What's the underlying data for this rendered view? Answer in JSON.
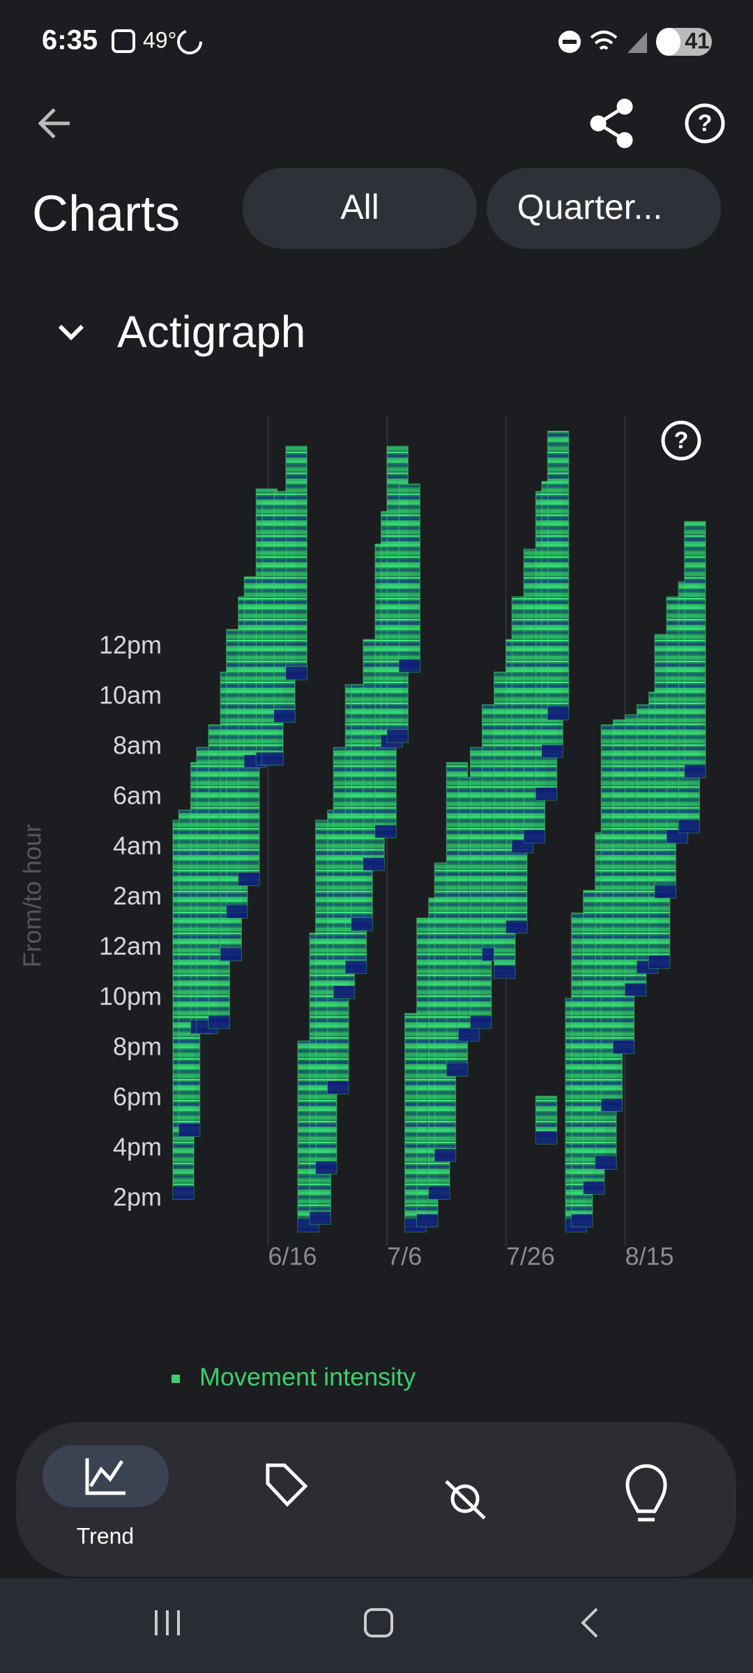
{
  "status_bar": {
    "time": "6:35",
    "temperature": "49°",
    "battery": "41"
  },
  "header": {
    "title": "Charts",
    "filters": [
      "All",
      "Quarter..."
    ]
  },
  "section": {
    "title": "Actigraph"
  },
  "chart_data": {
    "type": "range-bar",
    "y_label": "From/to hour",
    "x": [
      151,
      152,
      154,
      155,
      157,
      159,
      160,
      162,
      163,
      165,
      166,
      168,
      170,
      172,
      174,
      175,
      177,
      178,
      180,
      181,
      183,
      185,
      186,
      187,
      189,
      190,
      192,
      194,
      195,
      197,
      199,
      201,
      203,
      205,
      207,
      208,
      210,
      212,
      213,
      214,
      212,
      217,
      218,
      220,
      222,
      223,
      225,
      227,
      229,
      231,
      232,
      234,
      236,
      237
    ],
    "series": [
      {
        "name": "Movement intensity",
        "color": "#3ccf6a",
        "from": [
          14.0,
          16.5,
          20.6,
          20.6,
          20.8,
          23.5,
          25.2,
          26.5,
          31.2,
          31.3,
          31.3,
          33.0,
          34.7,
          12.7,
          13.0,
          15.0,
          18.2,
          22.0,
          23.0,
          24.7,
          27.1,
          28.4,
          32.0,
          32.2,
          35.0,
          12.7,
          12.9,
          14.0,
          15.5,
          18.9,
          20.3,
          20.8,
          23.5,
          22.8,
          24.6,
          27.8,
          28.2,
          29.9,
          31.6,
          33.1,
          16.2,
          12.7,
          12.9,
          14.2,
          15.2,
          17.5,
          19.8,
          22.1,
          23.0,
          23.2,
          26.0,
          28.2,
          28.6,
          30.8
        ],
        "to": [
          29.1,
          29.5,
          31.4,
          32.0,
          32.9,
          35.0,
          36.7,
          38.0,
          38.8,
          42.3,
          41.8,
          42.2,
          44.0,
          20.3,
          24.6,
          29.1,
          29.5,
          32.0,
          34.5,
          34.5,
          36.3,
          40.1,
          41.4,
          44.0,
          42.5,
          21.4,
          25.2,
          26.0,
          27.4,
          31.4,
          30.8,
          32.0,
          33.7,
          35.0,
          36.3,
          38.0,
          39.9,
          42.2,
          42.6,
          44.6,
          18.1,
          22.0,
          25.4,
          26.3,
          28.6,
          32.9,
          33.1,
          33.3,
          33.7,
          34.2,
          36.5,
          38.0,
          38.6,
          41.0
        ]
      }
    ],
    "xlim": [
      151,
      243
    ],
    "ylim": [
      12.7,
      45.2
    ],
    "xticks": [
      {
        "value": 167,
        "label": "6/16"
      },
      {
        "value": 187,
        "label": "7/6"
      },
      {
        "value": 207,
        "label": "7/26"
      },
      {
        "value": 227,
        "label": "8/15"
      }
    ],
    "yticks": [
      {
        "value": 14,
        "label": "2pm"
      },
      {
        "value": 16,
        "label": "4pm"
      },
      {
        "value": 18,
        "label": "6pm"
      },
      {
        "value": 20,
        "label": "8pm"
      },
      {
        "value": 22,
        "label": "10pm"
      },
      {
        "value": 24,
        "label": "12am"
      },
      {
        "value": 26,
        "label": "2am"
      },
      {
        "value": 28,
        "label": "4am"
      },
      {
        "value": 30,
        "label": "6am"
      },
      {
        "value": 32,
        "label": "8am"
      },
      {
        "value": 34,
        "label": "10am"
      },
      {
        "value": 36,
        "label": "12pm"
      }
    ],
    "grid": "x"
  },
  "navigation": {
    "active_tab": "Trend"
  }
}
